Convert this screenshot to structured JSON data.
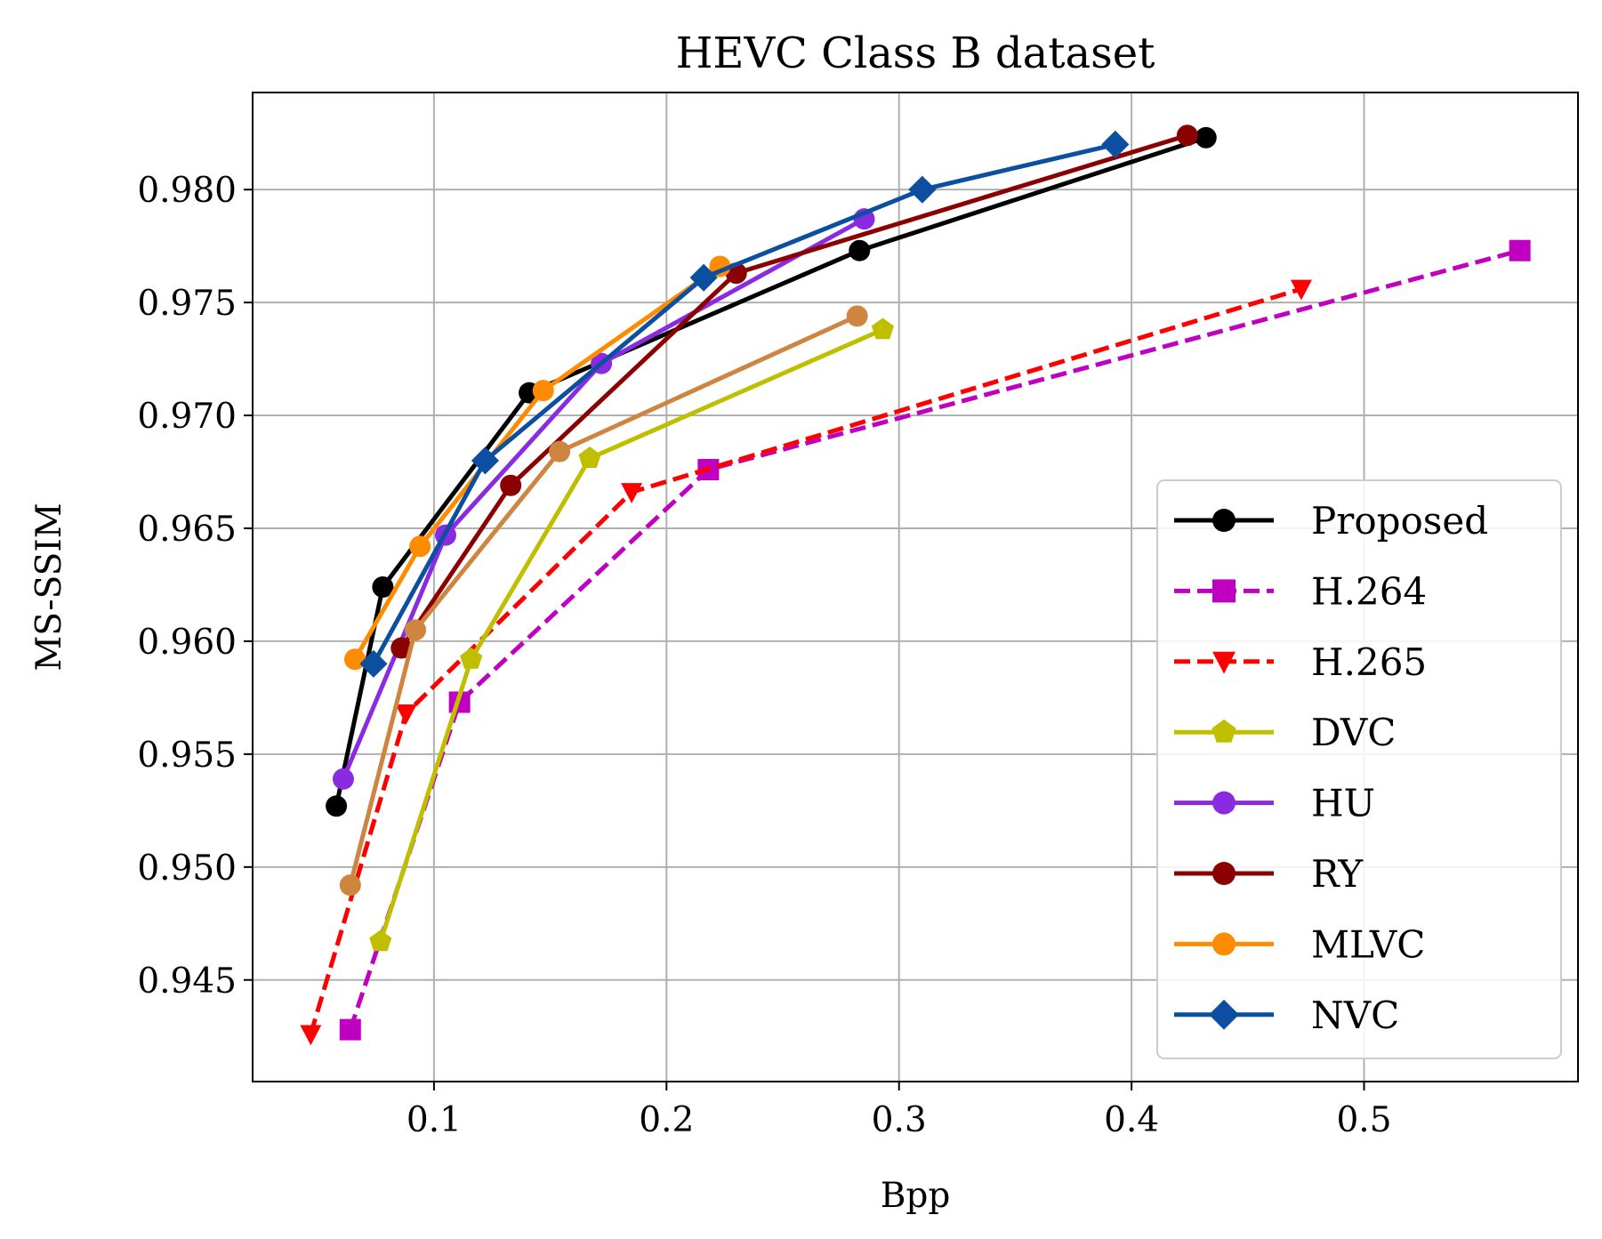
{
  "chart_data": {
    "type": "line",
    "title": "HEVC Class B dataset",
    "xlabel": "Bpp",
    "ylabel": "MS-SSIM",
    "xlim": [
      0.022,
      0.592
    ],
    "ylim": [
      0.9405,
      0.9843
    ],
    "xticks": [
      0.1,
      0.2,
      0.3,
      0.4,
      0.5
    ],
    "xtick_labels": [
      "0.1",
      "0.2",
      "0.3",
      "0.4",
      "0.5"
    ],
    "yticks": [
      0.945,
      0.95,
      0.955,
      0.96,
      0.965,
      0.97,
      0.975,
      0.98
    ],
    "ytick_labels": [
      "0.945",
      "0.950",
      "0.955",
      "0.960",
      "0.965",
      "0.970",
      "0.975",
      "0.980"
    ],
    "grid": true,
    "legend_position": "lower-right",
    "series": [
      {
        "name": "Proposed",
        "color": "#000000",
        "dash": "solid",
        "marker": "circle",
        "x": [
          0.058,
          0.078,
          0.141,
          0.283,
          0.432
        ],
        "y": [
          0.9527,
          0.9624,
          0.971,
          0.9773,
          0.9823
        ]
      },
      {
        "name": "H.264",
        "color": "#c000c0",
        "dash": "dashed",
        "marker": "square",
        "x": [
          0.064,
          0.111,
          0.218,
          0.567
        ],
        "y": [
          0.9428,
          0.9573,
          0.9676,
          0.9773
        ]
      },
      {
        "name": "H.265",
        "color": "#ff0000",
        "dash": "dashed",
        "marker": "triangle-down",
        "x": [
          0.047,
          0.088,
          0.185,
          0.473
        ],
        "y": [
          0.9426,
          0.9568,
          0.9666,
          0.9756
        ]
      },
      {
        "name": "DVC",
        "color": "#bfbf00",
        "dash": "solid",
        "marker": "pentagon",
        "x": [
          0.077,
          0.116,
          0.167,
          0.293
        ],
        "y": [
          0.9467,
          0.9592,
          0.9681,
          0.9738
        ]
      },
      {
        "name": "HU",
        "color": "#8a2be2",
        "dash": "solid",
        "marker": "circle",
        "x": [
          0.061,
          0.105,
          0.172,
          0.285
        ],
        "y": [
          0.9539,
          0.9647,
          0.9723,
          0.9787
        ]
      },
      {
        "name": "RY",
        "color": "#8b0000",
        "dash": "solid",
        "marker": "circle",
        "x": [
          0.086,
          0.133,
          0.23,
          0.424
        ],
        "y": [
          0.9597,
          0.9669,
          0.9763,
          0.9824
        ]
      },
      {
        "name": "MLVC",
        "color": "#ff8c00",
        "dash": "solid",
        "marker": "circle",
        "x": [
          0.066,
          0.094,
          0.147,
          0.223
        ],
        "y": [
          0.9592,
          0.9642,
          0.9711,
          0.9766
        ]
      },
      {
        "name": "NVC",
        "color": "#0c4fa0",
        "dash": "solid",
        "marker": "diamond",
        "x": [
          0.074,
          0.122,
          0.216,
          0.31,
          0.393
        ],
        "y": [
          0.959,
          0.968,
          0.9761,
          0.98,
          0.982
        ]
      },
      {
        "name": "",
        "color": "#cd853f",
        "dash": "solid",
        "marker": "circle",
        "x": [
          0.064,
          0.092,
          0.154,
          0.282
        ],
        "y": [
          0.9492,
          0.9605,
          0.9684,
          0.9744
        ]
      }
    ]
  }
}
